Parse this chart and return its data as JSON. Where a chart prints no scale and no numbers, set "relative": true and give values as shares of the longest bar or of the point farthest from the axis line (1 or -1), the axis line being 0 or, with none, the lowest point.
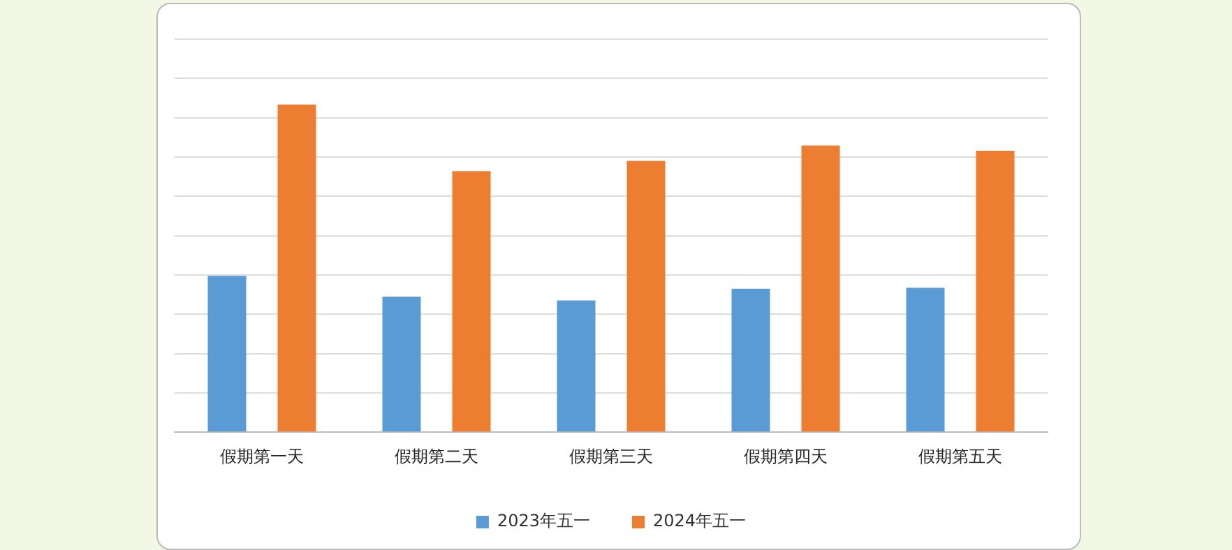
{
  "chart_data": {
    "type": "bar",
    "relative": true,
    "categories": [
      "假期第一天",
      "假期第二天",
      "假期第三天",
      "假期第四天",
      "假期第五天"
    ],
    "series": [
      {
        "name": "2023年五一",
        "color": "#5b9bd5",
        "values": [
          0.477,
          0.414,
          0.402,
          0.438,
          0.441
        ]
      },
      {
        "name": "2024年五一",
        "color": "#ed7d31",
        "values": [
          1,
          0.797,
          0.828,
          0.875,
          0.859
        ]
      }
    ],
    "grid": "y",
    "legend": "bottom"
  }
}
